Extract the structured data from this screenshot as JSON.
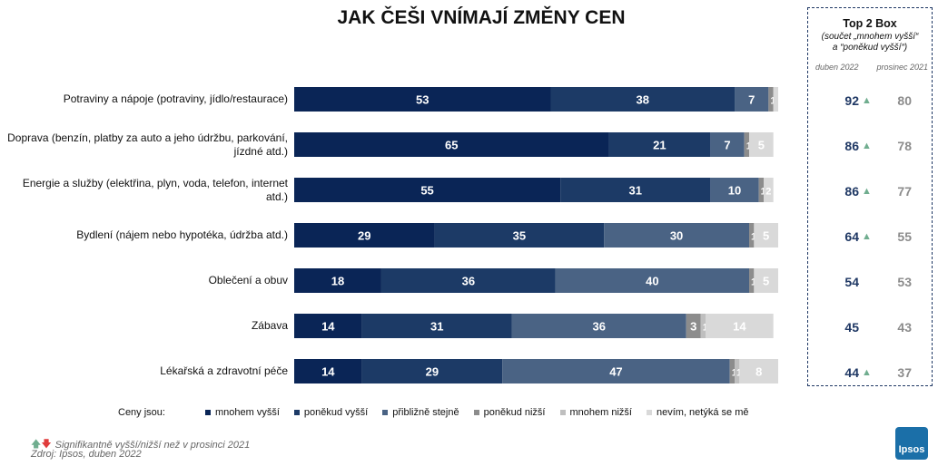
{
  "chart_data": {
    "type": "bar",
    "orientation": "horizontal",
    "stacked": true,
    "title": "JAK ČEŠI VNÍMAJÍ ZMĚNY CEN",
    "categories": [
      "Potraviny a nápoje (potraviny, jídlo/restaurace)",
      "Doprava (benzín, platby za auto a jeho údržbu, parkování, jízdné atd.)",
      "Energie a služby (elektřina, plyn, voda, telefon, internet atd.)",
      "Bydlení (nájem nebo hypotéka, údržba atd.)",
      "Oblečení a obuv",
      "Zábava",
      "Lékařská a zdravotní péče"
    ],
    "series": [
      {
        "name": "mnohem vyšší",
        "color": "#0a2556",
        "values": [
          53,
          65,
          55,
          29,
          18,
          14,
          14
        ],
        "labels": [
          "53",
          "65",
          "55",
          "29",
          "18",
          "14",
          "14"
        ]
      },
      {
        "name": "poněkud vyšší",
        "color": "#1c3a66",
        "values": [
          38,
          21,
          31,
          35,
          36,
          31,
          29
        ],
        "labels": [
          "38",
          "21",
          "31",
          "35",
          "36",
          "31",
          "29"
        ]
      },
      {
        "name": "přibližně stejně",
        "color": "#4a6384",
        "values": [
          7,
          7,
          10,
          30,
          40,
          36,
          47
        ],
        "labels": [
          "7",
          "7",
          "10",
          "30",
          "40",
          "36",
          "47"
        ]
      },
      {
        "name": "poněkud nižší",
        "color": "#8c8c8c",
        "values": [
          1,
          1,
          1,
          1,
          1,
          3,
          1
        ],
        "labels": [
          "1",
          "1",
          "1",
          "1",
          "1",
          "3",
          "1"
        ]
      },
      {
        "name": "mnohem nižší",
        "color": "#bfbfbf",
        "values": [
          0,
          0,
          0,
          0,
          0,
          1,
          1
        ],
        "labels": [
          "0",
          "0",
          "0",
          "0",
          "0",
          "1",
          "1"
        ]
      },
      {
        "name": "nevím, netýká se mě",
        "color": "#d9d9d9",
        "values": [
          1,
          5,
          2,
          5,
          5,
          14,
          8
        ],
        "labels": [
          "",
          "5",
          "2",
          "5",
          "5",
          "14",
          "8"
        ]
      }
    ],
    "xlim": [
      0,
      100
    ],
    "legend": {
      "lead": "Ceny jsou:",
      "position": "bottom"
    },
    "top2box": {
      "title": "Top 2 Box",
      "subtitle_line1": "(součet „mnohem vyšší“",
      "subtitle_line2": "a “poněkud vyšší“)",
      "col_a": "duben 2022",
      "col_b": "prosinec 2021",
      "values_a": [
        92,
        86,
        86,
        64,
        54,
        45,
        44
      ],
      "values_b": [
        80,
        78,
        77,
        55,
        53,
        43,
        37
      ],
      "significant_up": [
        true,
        true,
        true,
        true,
        false,
        false,
        true
      ]
    }
  },
  "footnote": "Signifikantně vyšší/nižší než v prosinci 2021",
  "source": "Zdroj: Ipsos, duben 2022",
  "logo_text": "Ipsos",
  "colors": {
    "arrow_up": "#70ad8f",
    "arrow_down": "#e03c3c",
    "top2_a": "#1f3864",
    "top2_b": "#8c8c8c"
  }
}
